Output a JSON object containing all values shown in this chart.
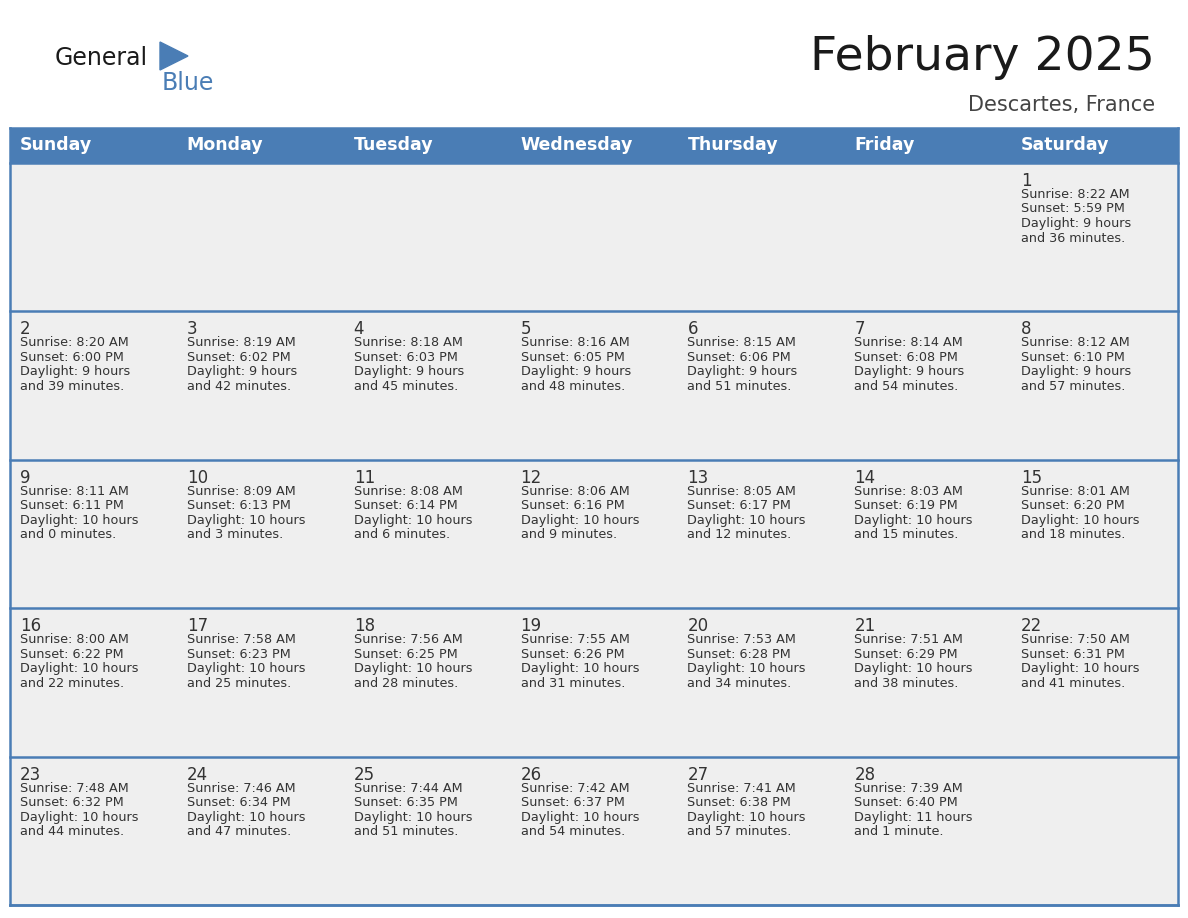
{
  "title": "February 2025",
  "subtitle": "Descartes, France",
  "days_of_week": [
    "Sunday",
    "Monday",
    "Tuesday",
    "Wednesday",
    "Thursday",
    "Friday",
    "Saturday"
  ],
  "header_bg": "#4a7db5",
  "header_text_color": "#FFFFFF",
  "cell_bg": "#EFEFEF",
  "cell_border_color": "#4a7db5",
  "title_color": "#1a1a1a",
  "subtitle_color": "#444444",
  "text_color": "#333333",
  "logo_general_color": "#1a1a1a",
  "logo_blue_color": "#4a7db5",
  "calendar_data": [
    [
      null,
      null,
      null,
      null,
      null,
      null,
      1
    ],
    [
      2,
      3,
      4,
      5,
      6,
      7,
      8
    ],
    [
      9,
      10,
      11,
      12,
      13,
      14,
      15
    ],
    [
      16,
      17,
      18,
      19,
      20,
      21,
      22
    ],
    [
      23,
      24,
      25,
      26,
      27,
      28,
      null
    ]
  ],
  "day_info": {
    "1": {
      "sunrise": "8:22 AM",
      "sunset": "5:59 PM",
      "daylight_line1": "Daylight: 9 hours",
      "daylight_line2": "and 36 minutes."
    },
    "2": {
      "sunrise": "8:20 AM",
      "sunset": "6:00 PM",
      "daylight_line1": "Daylight: 9 hours",
      "daylight_line2": "and 39 minutes."
    },
    "3": {
      "sunrise": "8:19 AM",
      "sunset": "6:02 PM",
      "daylight_line1": "Daylight: 9 hours",
      "daylight_line2": "and 42 minutes."
    },
    "4": {
      "sunrise": "8:18 AM",
      "sunset": "6:03 PM",
      "daylight_line1": "Daylight: 9 hours",
      "daylight_line2": "and 45 minutes."
    },
    "5": {
      "sunrise": "8:16 AM",
      "sunset": "6:05 PM",
      "daylight_line1": "Daylight: 9 hours",
      "daylight_line2": "and 48 minutes."
    },
    "6": {
      "sunrise": "8:15 AM",
      "sunset": "6:06 PM",
      "daylight_line1": "Daylight: 9 hours",
      "daylight_line2": "and 51 minutes."
    },
    "7": {
      "sunrise": "8:14 AM",
      "sunset": "6:08 PM",
      "daylight_line1": "Daylight: 9 hours",
      "daylight_line2": "and 54 minutes."
    },
    "8": {
      "sunrise": "8:12 AM",
      "sunset": "6:10 PM",
      "daylight_line1": "Daylight: 9 hours",
      "daylight_line2": "and 57 minutes."
    },
    "9": {
      "sunrise": "8:11 AM",
      "sunset": "6:11 PM",
      "daylight_line1": "Daylight: 10 hours",
      "daylight_line2": "and 0 minutes."
    },
    "10": {
      "sunrise": "8:09 AM",
      "sunset": "6:13 PM",
      "daylight_line1": "Daylight: 10 hours",
      "daylight_line2": "and 3 minutes."
    },
    "11": {
      "sunrise": "8:08 AM",
      "sunset": "6:14 PM",
      "daylight_line1": "Daylight: 10 hours",
      "daylight_line2": "and 6 minutes."
    },
    "12": {
      "sunrise": "8:06 AM",
      "sunset": "6:16 PM",
      "daylight_line1": "Daylight: 10 hours",
      "daylight_line2": "and 9 minutes."
    },
    "13": {
      "sunrise": "8:05 AM",
      "sunset": "6:17 PM",
      "daylight_line1": "Daylight: 10 hours",
      "daylight_line2": "and 12 minutes."
    },
    "14": {
      "sunrise": "8:03 AM",
      "sunset": "6:19 PM",
      "daylight_line1": "Daylight: 10 hours",
      "daylight_line2": "and 15 minutes."
    },
    "15": {
      "sunrise": "8:01 AM",
      "sunset": "6:20 PM",
      "daylight_line1": "Daylight: 10 hours",
      "daylight_line2": "and 18 minutes."
    },
    "16": {
      "sunrise": "8:00 AM",
      "sunset": "6:22 PM",
      "daylight_line1": "Daylight: 10 hours",
      "daylight_line2": "and 22 minutes."
    },
    "17": {
      "sunrise": "7:58 AM",
      "sunset": "6:23 PM",
      "daylight_line1": "Daylight: 10 hours",
      "daylight_line2": "and 25 minutes."
    },
    "18": {
      "sunrise": "7:56 AM",
      "sunset": "6:25 PM",
      "daylight_line1": "Daylight: 10 hours",
      "daylight_line2": "and 28 minutes."
    },
    "19": {
      "sunrise": "7:55 AM",
      "sunset": "6:26 PM",
      "daylight_line1": "Daylight: 10 hours",
      "daylight_line2": "and 31 minutes."
    },
    "20": {
      "sunrise": "7:53 AM",
      "sunset": "6:28 PM",
      "daylight_line1": "Daylight: 10 hours",
      "daylight_line2": "and 34 minutes."
    },
    "21": {
      "sunrise": "7:51 AM",
      "sunset": "6:29 PM",
      "daylight_line1": "Daylight: 10 hours",
      "daylight_line2": "and 38 minutes."
    },
    "22": {
      "sunrise": "7:50 AM",
      "sunset": "6:31 PM",
      "daylight_line1": "Daylight: 10 hours",
      "daylight_line2": "and 41 minutes."
    },
    "23": {
      "sunrise": "7:48 AM",
      "sunset": "6:32 PM",
      "daylight_line1": "Daylight: 10 hours",
      "daylight_line2": "and 44 minutes."
    },
    "24": {
      "sunrise": "7:46 AM",
      "sunset": "6:34 PM",
      "daylight_line1": "Daylight: 10 hours",
      "daylight_line2": "and 47 minutes."
    },
    "25": {
      "sunrise": "7:44 AM",
      "sunset": "6:35 PM",
      "daylight_line1": "Daylight: 10 hours",
      "daylight_line2": "and 51 minutes."
    },
    "26": {
      "sunrise": "7:42 AM",
      "sunset": "6:37 PM",
      "daylight_line1": "Daylight: 10 hours",
      "daylight_line2": "and 54 minutes."
    },
    "27": {
      "sunrise": "7:41 AM",
      "sunset": "6:38 PM",
      "daylight_line1": "Daylight: 10 hours",
      "daylight_line2": "and 57 minutes."
    },
    "28": {
      "sunrise": "7:39 AM",
      "sunset": "6:40 PM",
      "daylight_line1": "Daylight: 11 hours",
      "daylight_line2": "and 1 minute."
    }
  }
}
